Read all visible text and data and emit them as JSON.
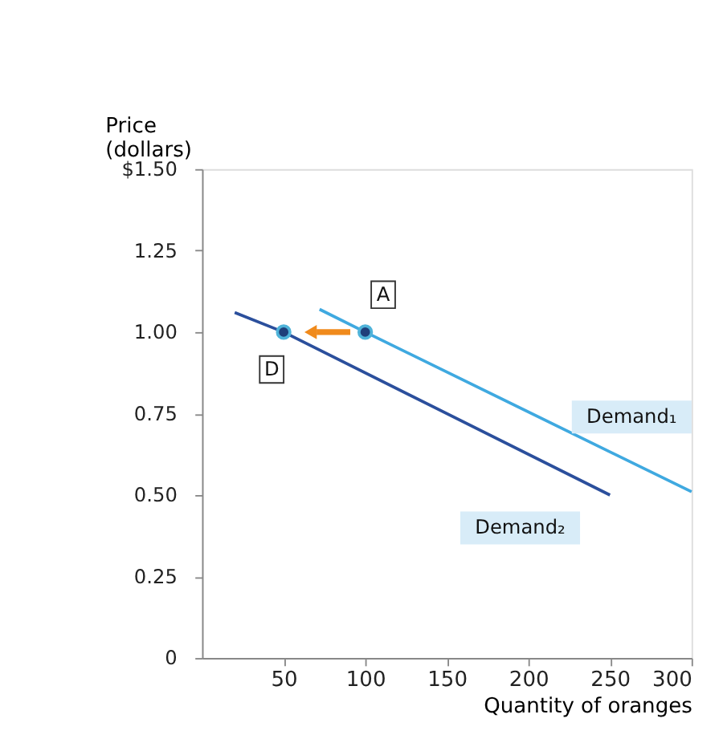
{
  "chart_data": {
    "type": "line",
    "ylabel": "Price\n(dollars)",
    "xlabel": "Quantity of oranges",
    "xlim": [
      0,
      300
    ],
    "xticks": [
      50,
      100,
      150,
      200,
      250,
      300
    ],
    "ylim": [
      0,
      1.5
    ],
    "yticks": [
      {
        "value": 0,
        "label": "0"
      },
      0.25,
      {
        "value": 0.5,
        "label": "0.50"
      },
      0.75,
      {
        "value": 1.0,
        "label": "1.00"
      },
      {
        "value": 1.5,
        "label": "$1.50"
      },
      1.25
    ],
    "series": [
      {
        "name": "Demand₁",
        "color": "#3fa9e0",
        "x": [
          72,
          100,
          300
        ],
        "values": [
          1.07,
          1.0,
          0.51
        ]
      },
      {
        "name": "Demand₂",
        "color": "#2b4f9c",
        "x": [
          20,
          50,
          250
        ],
        "values": [
          1.06,
          1.0,
          0.5
        ]
      },
      {
        "type": "scatter",
        "color": "#1f3f7a",
        "x": [
          50,
          100
        ],
        "values": [
          1.0,
          1.0
        ],
        "marker": "circle"
      }
    ],
    "annotations": [
      {
        "text": "A",
        "x": 100,
        "y": 1.0
      },
      {
        "text": "D",
        "x": 50,
        "y": 1.0
      }
    ],
    "grid": false
  }
}
